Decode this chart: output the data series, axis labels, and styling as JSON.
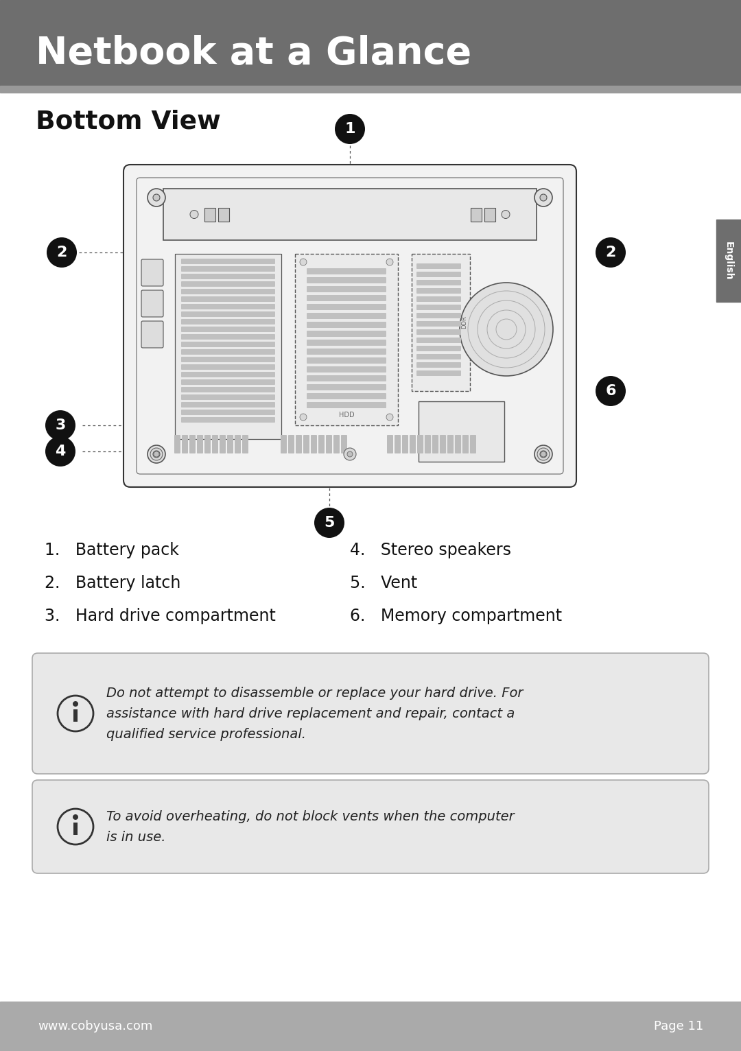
{
  "header_title": "Netbook at a Glance",
  "header_bg": "#6e6e6e",
  "header_stripe": "#999999",
  "section_title": "Bottom View",
  "items_left": [
    "1.   Battery pack",
    "2.   Battery latch",
    "3.   Hard drive compartment"
  ],
  "items_right": [
    "4.   Stereo speakers",
    "5.   Vent",
    "6.   Memory compartment"
  ],
  "note1_line1": "Do not attempt to disassemble or replace your hard drive. For",
  "note1_line2": "assistance with hard drive replacement and repair, contact a",
  "note1_line3": "qualified service professional.",
  "note2_line1": "To avoid overheating, do not block vents when the computer",
  "note2_line2": "is in use.",
  "footer_left": "www.cobyusa.com",
  "footer_right": "Page 11",
  "footer_bg": "#aaaaaa",
  "bg_color": "#ffffff",
  "tab_color": "#6e6e6e",
  "tab_text": "English"
}
